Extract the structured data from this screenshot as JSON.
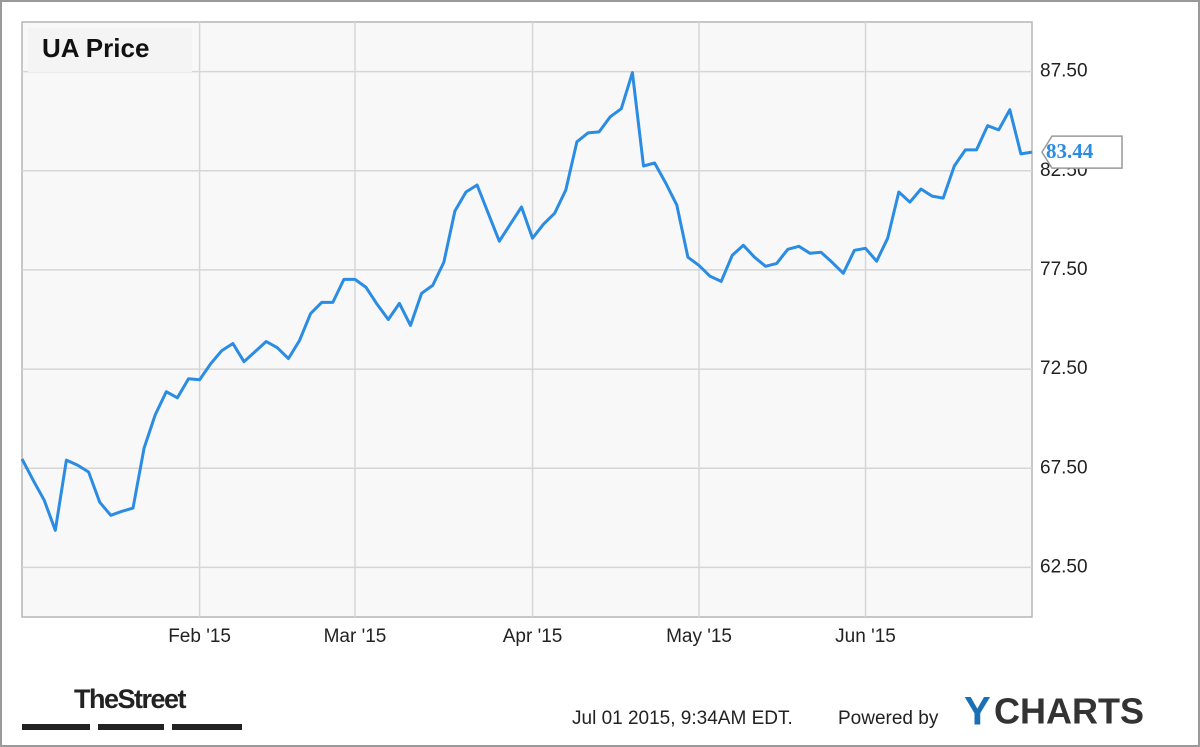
{
  "chart_data": {
    "type": "line",
    "title": "UA Price",
    "categories": [
      null,
      null,
      null,
      null,
      null,
      null,
      null,
      null,
      null,
      null,
      null,
      null,
      null,
      null,
      null,
      null,
      "Feb '15",
      null,
      null,
      null,
      null,
      null,
      null,
      null,
      null,
      null,
      null,
      null,
      null,
      null,
      "Mar '15",
      null,
      null,
      null,
      null,
      null,
      null,
      null,
      null,
      null,
      null,
      null,
      null,
      null,
      null,
      null,
      "Apr '15",
      null,
      null,
      null,
      null,
      null,
      null,
      null,
      null,
      null,
      null,
      null,
      null,
      null,
      null,
      "May '15",
      null,
      null,
      null,
      null,
      null,
      null,
      null,
      null,
      null,
      null,
      null,
      null,
      null,
      null,
      "Jun '15",
      null,
      null,
      null,
      null,
      null,
      null,
      null,
      null,
      null,
      null,
      null,
      null,
      null,
      null,
      null
    ],
    "values": [
      67.97,
      66.9,
      65.89,
      64.37,
      67.91,
      67.66,
      67.31,
      65.79,
      65.13,
      65.33,
      65.49,
      68.52,
      70.19,
      71.36,
      71.05,
      72.01,
      71.96,
      72.77,
      73.43,
      73.79,
      72.87,
      73.38,
      73.89,
      73.58,
      73.03,
      73.94,
      75.3,
      75.86,
      75.86,
      77.02,
      77.02,
      76.62,
      75.76,
      75.0,
      75.81,
      74.7,
      76.32,
      76.72,
      77.88,
      80.47,
      81.43,
      81.78,
      80.36,
      78.95,
      79.81,
      80.67,
      79.1,
      79.81,
      80.36,
      81.53,
      83.96,
      84.41,
      84.46,
      85.22,
      85.63,
      87.45,
      82.74,
      82.89,
      81.88,
      80.77,
      78.14,
      77.73,
      77.18,
      76.92,
      78.24,
      78.74,
      78.14,
      77.68,
      77.83,
      78.54,
      78.69,
      78.34,
      78.39,
      77.88,
      77.33,
      78.49,
      78.59,
      77.94,
      79.1,
      81.43,
      80.92,
      81.58,
      81.22,
      81.12,
      82.74,
      83.55,
      83.55,
      84.77,
      84.56,
      85.58,
      83.35,
      83.44
    ],
    "color": "#2b8ce3",
    "ylim": [
      60,
      90
    ],
    "yticks": [
      {
        "value": 62.5,
        "label": "62.50"
      },
      {
        "value": 67.5,
        "label": "67.50"
      },
      {
        "value": 72.5,
        "label": "72.50"
      },
      {
        "value": 77.5,
        "label": "77.50"
      },
      {
        "value": 82.5,
        "label": "82.50"
      },
      {
        "value": 87.5,
        "label": "87.50"
      }
    ],
    "grid": true
  },
  "footer": {
    "publisher": "TheStreet",
    "timestamp": "Jul 01 2015, 9:34AM EDT.",
    "powered_by": "Powered by",
    "logo_y": "Y",
    "logo_rest": "CHARTS"
  }
}
